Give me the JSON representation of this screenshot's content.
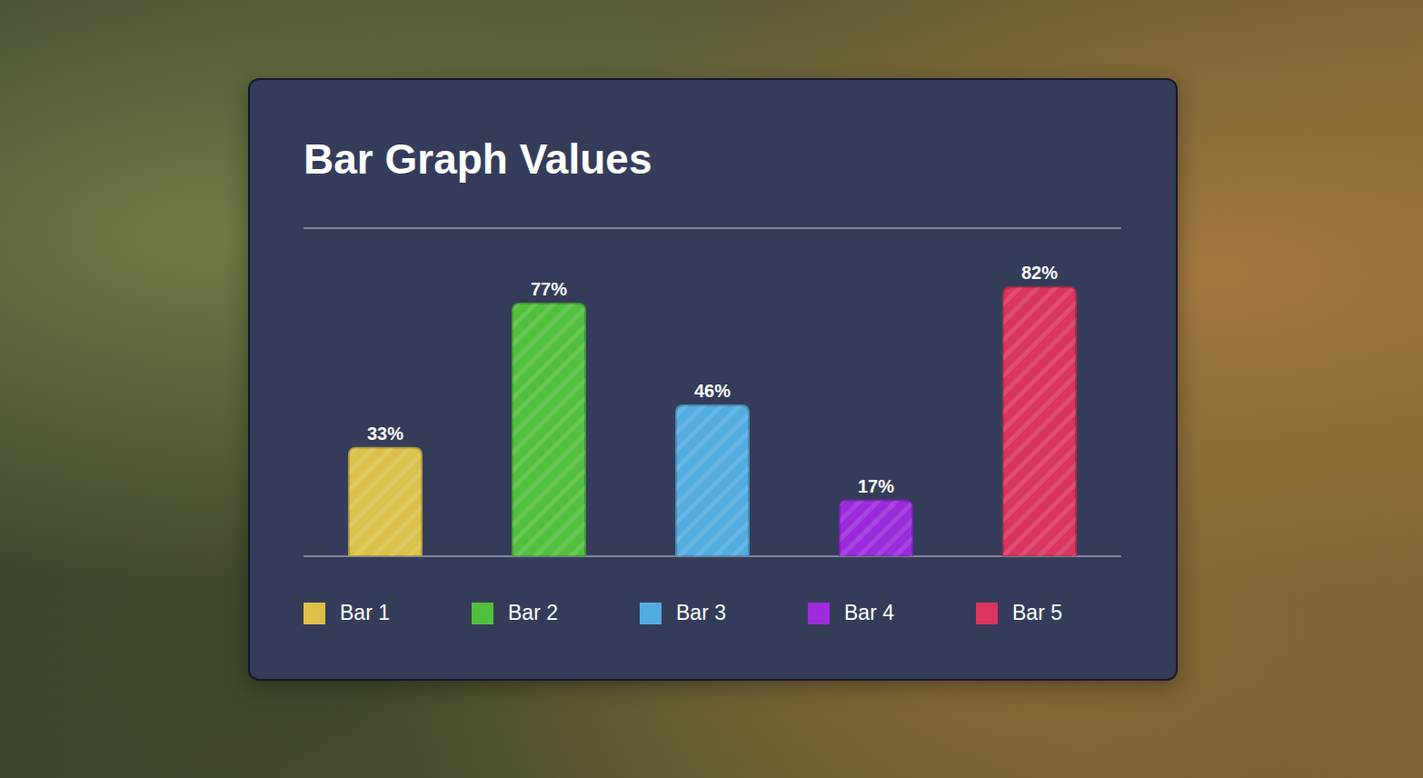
{
  "chart_data": {
    "type": "bar",
    "title": "Bar Graph Values",
    "categories": [
      "Bar 1",
      "Bar 2",
      "Bar 3",
      "Bar 4",
      "Bar 5"
    ],
    "values": [
      33,
      77,
      46,
      17,
      82
    ],
    "value_labels": [
      "33%",
      "77%",
      "46%",
      "17%",
      "82%"
    ],
    "colors": [
      "#dcc04a",
      "#52c03f",
      "#53acdf",
      "#9c2bdc",
      "#d9355f"
    ],
    "ylim": [
      0,
      100
    ],
    "yticks": [
      0,
      33.3,
      66.7,
      100
    ],
    "grid": true,
    "data_labels": true,
    "tick_labels": false,
    "legend": "bottom"
  }
}
